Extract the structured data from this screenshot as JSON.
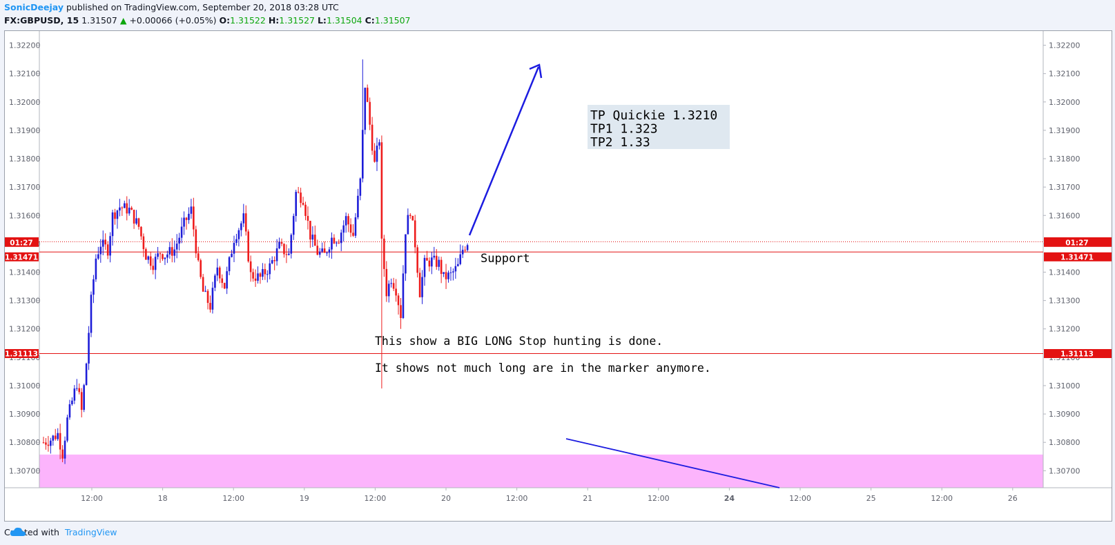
{
  "header": {
    "author": "SonicDeejay",
    "published": "published on TradingView.com, September 20, 2018 03:28 UTC",
    "symbol": "FX:GBPUSD, 15",
    "last": "1.31507",
    "up_arrow": "▲",
    "change": "+0.00066 (+0.05%)",
    "o_label": "O:",
    "o_value": "1.31522",
    "h_label": "H:",
    "h_value": "1.31527",
    "l_label": "L:",
    "l_value": "1.31504",
    "c_label": "C:",
    "c_value": "1.31507"
  },
  "footer": {
    "created": "Created with",
    "brand": "TradingView",
    "logo_icon": "tradingview-cloud-icon"
  },
  "colors": {
    "up": "#1d1dd8",
    "down": "#ee1c1c",
    "zone": "#fcb4fc",
    "annotation": "#1c1ce0",
    "price_line": "#e31212",
    "note_box": "#dfe8f0"
  },
  "chart_data": {
    "type": "candlestick",
    "symbol": "FX:GBPUSD",
    "interval": "15",
    "ylim": [
      1.3064,
      1.3225
    ],
    "y_ticks": [
      "1.32200",
      "1.32100",
      "1.32000",
      "1.31900",
      "1.31800",
      "1.31700",
      "1.31600",
      "1.31500",
      "1.31400",
      "1.31300",
      "1.31200",
      "1.31100",
      "1.31000",
      "1.30900",
      "1.30800",
      "1.30700"
    ],
    "x_ticks": [
      "12:00",
      "18",
      "12:00",
      "19",
      "12:00",
      "20",
      "12:00",
      "21",
      "12:00",
      "24",
      "12:00",
      "25",
      "12:00",
      "26"
    ],
    "price_tags": [
      {
        "label": "1.31507",
        "value": 1.31507
      },
      {
        "label": "01:27",
        "value": 1.31471,
        "countdown": true
      },
      {
        "label": "1.31471",
        "value": 1.31471
      },
      {
        "label": "1.31113",
        "value": 1.31113
      }
    ],
    "horizontal_lines": [
      {
        "value": 1.31507,
        "style": "dotted"
      },
      {
        "value": 1.31471,
        "style": "solid"
      },
      {
        "value": 1.31113,
        "style": "solid"
      }
    ],
    "zone": {
      "from": 1.3064,
      "to": 1.30757
    },
    "notes": {
      "tp": [
        "TP Quickie 1.3210",
        "TP1 1.323",
        "TP2 1.33"
      ],
      "support": "Support",
      "stop1": "This show a BIG LONG Stop hunting is done.",
      "stop2": "It shows not much long are in the marker anymore."
    },
    "waypoints": [
      [
        0,
        1.308
      ],
      [
        3,
        1.3081
      ],
      [
        6,
        1.3083
      ],
      [
        8,
        1.3076
      ],
      [
        10,
        1.3088
      ],
      [
        14,
        1.3101
      ],
      [
        16,
        1.3091
      ],
      [
        18,
        1.3108
      ],
      [
        20,
        1.313
      ],
      [
        22,
        1.3145
      ],
      [
        24,
        1.315
      ],
      [
        27,
        1.3148
      ],
      [
        29,
        1.316
      ],
      [
        32,
        1.3163
      ],
      [
        36,
        1.3162
      ],
      [
        40,
        1.3156
      ],
      [
        43,
        1.3146
      ],
      [
        46,
        1.3143
      ],
      [
        49,
        1.3147
      ],
      [
        51,
        1.3146
      ],
      [
        55,
        1.3148
      ],
      [
        59,
        1.3157
      ],
      [
        62,
        1.3162
      ],
      [
        65,
        1.3142
      ],
      [
        67,
        1.3133
      ],
      [
        70,
        1.3128
      ],
      [
        73,
        1.3142
      ],
      [
        76,
        1.3135
      ],
      [
        80,
        1.3152
      ],
      [
        84,
        1.3159
      ],
      [
        87,
        1.3139
      ],
      [
        91,
        1.3138
      ],
      [
        95,
        1.3142
      ],
      [
        99,
        1.3149
      ],
      [
        103,
        1.3146
      ],
      [
        106,
        1.3168
      ],
      [
        109,
        1.3166
      ],
      [
        112,
        1.3153
      ],
      [
        115,
        1.3147
      ],
      [
        118,
        1.3146
      ],
      [
        121,
        1.3152
      ],
      [
        124,
        1.3152
      ],
      [
        127,
        1.3159
      ],
      [
        130,
        1.3153
      ],
      [
        133,
        1.3172
      ],
      [
        135,
        1.3206
      ],
      [
        137,
        1.3192
      ],
      [
        139,
        1.3178
      ],
      [
        141,
        1.3187
      ],
      [
        142,
        1.315
      ],
      [
        144,
        1.3133
      ],
      [
        146,
        1.3138
      ],
      [
        148,
        1.3134
      ],
      [
        150,
        1.3125
      ],
      [
        152,
        1.3155
      ],
      [
        154,
        1.3162
      ],
      [
        156,
        1.315
      ],
      [
        158,
        1.3133
      ],
      [
        160,
        1.3143
      ],
      [
        163,
        1.3144
      ],
      [
        166,
        1.3143
      ],
      [
        168,
        1.3138
      ],
      [
        171,
        1.3139
      ],
      [
        174,
        1.3142
      ],
      [
        176,
        1.3148
      ],
      [
        178,
        1.31507
      ]
    ],
    "spikes": [
      {
        "i": 134,
        "high": 1.3215
      },
      {
        "i": 142,
        "low": 1.3099
      },
      {
        "i": 150,
        "low": 1.312
      },
      {
        "i": 8,
        "low": 1.3073
      }
    ]
  }
}
